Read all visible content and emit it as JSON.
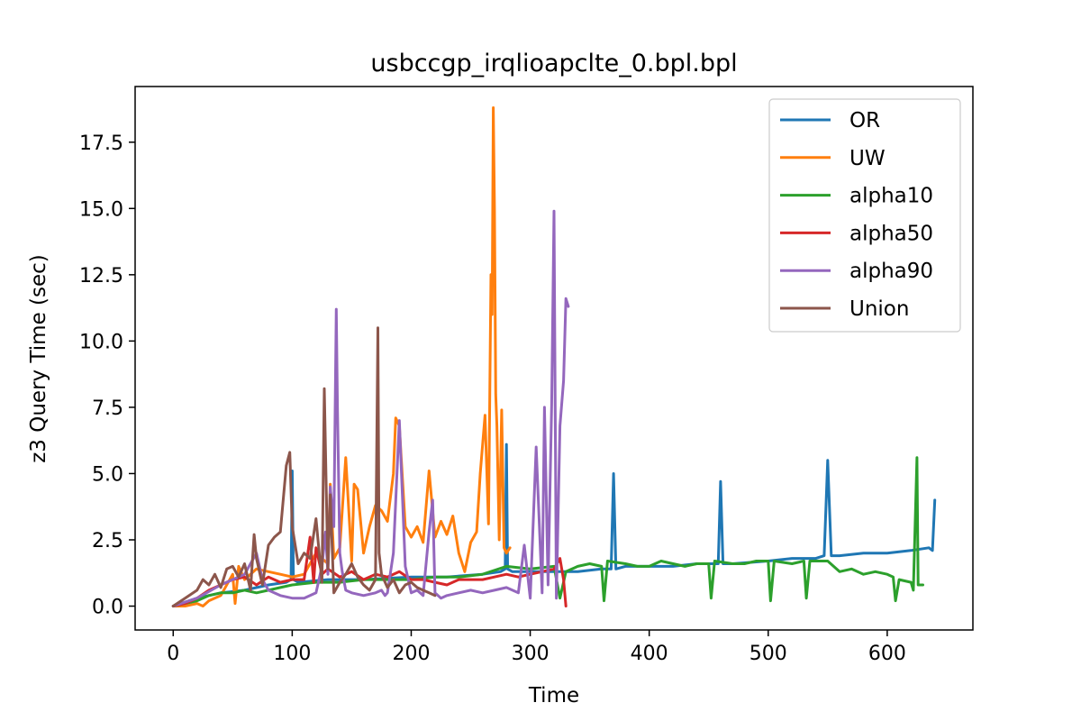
{
  "chart_data": {
    "type": "line",
    "title": "usbccgp_irqlioapclte_0.bpl.bpl",
    "xlabel": "Time",
    "ylabel": "z3 Query Time (sec)",
    "xlim": [
      -32,
      672
    ],
    "ylim": [
      -0.9,
      19.6
    ],
    "xticks": [
      0,
      100,
      200,
      300,
      400,
      500,
      600
    ],
    "yticks": [
      0.0,
      2.5,
      5.0,
      7.5,
      10.0,
      12.5,
      15.0,
      17.5
    ],
    "ytick_labels": [
      "0.0",
      "2.5",
      "5.0",
      "7.5",
      "10.0",
      "12.5",
      "15.0",
      "17.5"
    ],
    "grid": false,
    "legend_position": "top-right",
    "series": [
      {
        "name": "OR",
        "color": "#1f77b4",
        "x": [
          0,
          20,
          40,
          60,
          80,
          95,
          99,
          100,
          101,
          105,
          130,
          160,
          200,
          230,
          260,
          275,
          279,
          280,
          281,
          285,
          300,
          320,
          340,
          360,
          368,
          370,
          372,
          380,
          400,
          420,
          440,
          455,
          458,
          460,
          462,
          470,
          500,
          520,
          540,
          547,
          550,
          553,
          560,
          580,
          600,
          620,
          635,
          638,
          640
        ],
        "y": [
          0.0,
          0.3,
          0.5,
          0.6,
          0.8,
          0.9,
          1.0,
          5.1,
          1.0,
          0.9,
          1.0,
          1.0,
          1.1,
          1.1,
          1.2,
          1.3,
          1.4,
          6.1,
          1.4,
          1.3,
          1.3,
          1.3,
          1.3,
          1.4,
          1.4,
          5.0,
          1.4,
          1.5,
          1.5,
          1.5,
          1.6,
          1.6,
          1.6,
          4.7,
          1.6,
          1.6,
          1.7,
          1.8,
          1.8,
          1.9,
          5.5,
          1.9,
          1.9,
          2.0,
          2.0,
          2.1,
          2.2,
          2.1,
          4.0
        ]
      },
      {
        "name": "UW",
        "color": "#ff7f0e",
        "x": [
          0,
          10,
          20,
          25,
          30,
          40,
          50,
          52,
          55,
          60,
          70,
          80,
          90,
          100,
          110,
          120,
          130,
          132,
          135,
          140,
          145,
          150,
          152,
          155,
          160,
          165,
          170,
          175,
          180,
          185,
          187,
          190,
          195,
          200,
          205,
          210,
          215,
          220,
          225,
          230,
          235,
          240,
          245,
          250,
          255,
          258,
          262,
          265,
          267,
          268,
          269,
          270,
          271,
          272,
          274,
          276,
          278,
          280,
          283
        ],
        "y": [
          0.0,
          0.0,
          0.1,
          0.0,
          0.2,
          0.4,
          1.2,
          0.1,
          1.5,
          1.0,
          1.4,
          1.3,
          1.2,
          1.1,
          1.2,
          2.0,
          1.6,
          4.6,
          1.8,
          2.2,
          5.6,
          1.7,
          4.6,
          4.4,
          2.0,
          3.0,
          3.8,
          3.6,
          3.2,
          5.0,
          7.1,
          6.8,
          3.0,
          2.6,
          3.0,
          2.4,
          5.1,
          2.6,
          3.2,
          2.7,
          3.4,
          2.0,
          1.3,
          2.4,
          2.8,
          5.0,
          7.2,
          3.1,
          12.5,
          11.0,
          18.8,
          15.0,
          8.0,
          6.8,
          2.5,
          7.4,
          2.2,
          2.0,
          2.2
        ]
      },
      {
        "name": "alpha10",
        "color": "#2ca02c",
        "x": [
          0,
          20,
          30,
          40,
          50,
          60,
          70,
          80,
          90,
          100,
          120,
          140,
          160,
          180,
          200,
          220,
          240,
          260,
          280,
          300,
          320,
          325,
          330,
          340,
          350,
          360,
          362,
          365,
          380,
          390,
          400,
          410,
          420,
          430,
          440,
          450,
          452,
          455,
          470,
          480,
          490,
          500,
          502,
          505,
          520,
          530,
          532,
          535,
          550,
          560,
          570,
          580,
          590,
          600,
          605,
          607,
          610,
          620,
          622,
          625,
          626,
          630
        ],
        "y": [
          0.0,
          0.2,
          0.4,
          0.5,
          0.5,
          0.6,
          0.5,
          0.6,
          0.7,
          0.8,
          0.9,
          0.9,
          1.0,
          1.0,
          1.0,
          1.1,
          1.1,
          1.2,
          1.5,
          1.4,
          1.5,
          0.3,
          1.3,
          1.5,
          1.6,
          1.5,
          0.2,
          1.7,
          1.6,
          1.5,
          1.5,
          1.7,
          1.6,
          1.5,
          1.6,
          1.6,
          0.3,
          1.7,
          1.6,
          1.6,
          1.7,
          1.7,
          0.2,
          1.7,
          1.6,
          1.7,
          0.3,
          1.7,
          1.7,
          1.3,
          1.4,
          1.2,
          1.3,
          1.2,
          1.1,
          0.2,
          1.0,
          0.9,
          0.6,
          5.6,
          0.8,
          0.8
        ]
      },
      {
        "name": "alpha50",
        "color": "#d62728",
        "x": [
          0,
          10,
          20,
          30,
          40,
          50,
          60,
          70,
          80,
          90,
          100,
          110,
          115,
          118,
          120,
          125,
          130,
          140,
          150,
          160,
          170,
          180,
          190,
          200,
          210,
          220,
          230,
          240,
          250,
          260,
          270,
          280,
          290,
          300,
          310,
          320,
          325,
          328,
          330
        ],
        "y": [
          0.0,
          0.1,
          0.3,
          0.6,
          0.8,
          1.0,
          1.1,
          0.8,
          1.1,
          0.9,
          1.0,
          1.0,
          2.6,
          0.9,
          2.2,
          1.2,
          1.4,
          1.1,
          1.3,
          1.0,
          1.2,
          1.1,
          1.3,
          1.0,
          1.0,
          0.9,
          0.8,
          1.0,
          1.0,
          1.0,
          1.1,
          1.2,
          1.1,
          1.2,
          1.3,
          1.4,
          1.8,
          1.0,
          0.0
        ]
      },
      {
        "name": "alpha90",
        "color": "#9467bd",
        "x": [
          0,
          20,
          40,
          60,
          70,
          75,
          80,
          90,
          100,
          110,
          120,
          125,
          128,
          130,
          132,
          135,
          137,
          138,
          140,
          142,
          145,
          150,
          160,
          170,
          175,
          178,
          180,
          185,
          190,
          195,
          200,
          205,
          210,
          215,
          218,
          220,
          225,
          230,
          240,
          250,
          260,
          270,
          280,
          290,
          295,
          300,
          305,
          310,
          312,
          315,
          318,
          320,
          322,
          325,
          328,
          330,
          332
        ],
        "y": [
          0.0,
          0.3,
          0.8,
          1.2,
          2.0,
          1.0,
          0.6,
          0.4,
          0.3,
          0.3,
          0.5,
          1.5,
          2.8,
          1.2,
          4.5,
          3.0,
          11.2,
          7.5,
          2.0,
          1.3,
          0.6,
          0.5,
          0.4,
          0.5,
          0.6,
          0.4,
          0.5,
          2.0,
          7.0,
          1.5,
          0.5,
          0.6,
          0.4,
          2.8,
          4.0,
          0.5,
          0.3,
          0.4,
          0.5,
          0.6,
          0.5,
          0.6,
          0.7,
          0.5,
          2.3,
          0.3,
          6.0,
          0.5,
          7.5,
          0.8,
          7.6,
          14.9,
          0.3,
          6.8,
          8.5,
          11.6,
          11.3
        ]
      },
      {
        "name": "Union",
        "color": "#8c564b",
        "x": [
          0,
          10,
          20,
          25,
          30,
          35,
          40,
          45,
          50,
          55,
          60,
          65,
          68,
          70,
          75,
          80,
          85,
          90,
          95,
          98,
          100,
          105,
          110,
          115,
          120,
          125,
          127,
          129,
          130,
          132,
          135,
          140,
          145,
          150,
          155,
          160,
          165,
          170,
          172,
          173,
          175,
          180,
          185,
          190,
          195,
          200,
          205,
          210,
          215,
          220
        ],
        "y": [
          0.0,
          0.3,
          0.6,
          1.0,
          0.8,
          1.2,
          0.7,
          1.4,
          1.5,
          1.1,
          1.6,
          0.6,
          2.7,
          1.8,
          0.8,
          2.3,
          2.6,
          2.8,
          5.3,
          5.8,
          3.0,
          1.6,
          2.0,
          1.8,
          3.3,
          0.9,
          8.2,
          3.5,
          1.4,
          4.2,
          0.5,
          0.9,
          1.2,
          1.6,
          1.1,
          0.8,
          0.6,
          1.0,
          10.5,
          2.0,
          1.2,
          0.7,
          1.0,
          0.5,
          0.8,
          0.9,
          0.7,
          0.6,
          0.5,
          0.4
        ]
      }
    ]
  }
}
